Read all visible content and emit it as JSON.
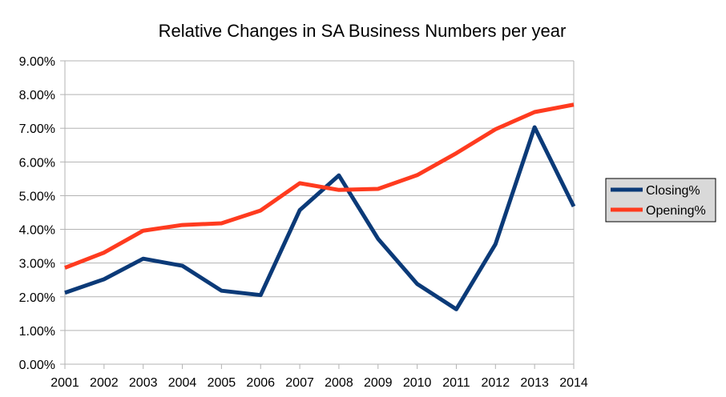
{
  "chart_data": {
    "type": "line",
    "title": "Relative Changes in SA Business Numbers per year",
    "xlabel": "",
    "ylabel": "",
    "categories": [
      "2001",
      "2002",
      "2003",
      "2004",
      "2005",
      "2006",
      "2007",
      "2008",
      "2009",
      "2010",
      "2011",
      "2012",
      "2013",
      "2014"
    ],
    "ylim": [
      0,
      9
    ],
    "yticks": [
      "0.00%",
      "1.00%",
      "2.00%",
      "3.00%",
      "4.00%",
      "5.00%",
      "6.00%",
      "7.00%",
      "8.00%",
      "9.00%"
    ],
    "grid": true,
    "legend_position": "right",
    "series": [
      {
        "name": "Closing%",
        "color": "#0b3a78",
        "values": [
          2.12,
          2.52,
          3.13,
          2.92,
          2.18,
          2.05,
          4.57,
          5.6,
          3.72,
          2.38,
          1.63,
          3.56,
          7.03,
          4.68
        ]
      },
      {
        "name": "Opening%",
        "color": "#ff3b1f",
        "values": [
          2.86,
          3.31,
          3.96,
          4.13,
          4.18,
          4.56,
          5.37,
          5.17,
          5.2,
          5.61,
          6.26,
          6.97,
          7.48,
          7.7
        ]
      }
    ]
  }
}
